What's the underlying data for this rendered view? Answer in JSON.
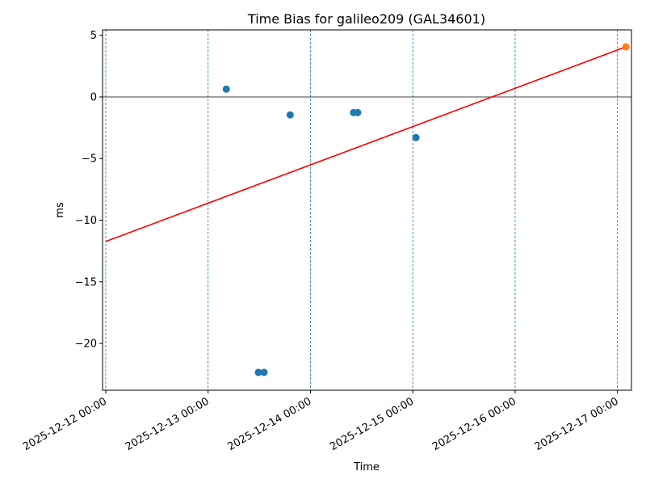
{
  "chart_data": {
    "type": "scatter",
    "title": "Time Bias for galileo209 (GAL34601)",
    "xlabel": "Time",
    "ylabel": "ms",
    "xlim": [
      "2025-12-11T23:15",
      "2025-12-17T03:17"
    ],
    "ylim": [
      -23.8,
      5.44
    ],
    "grid": "vertical dashed lines at x ticks",
    "x_ticks": [
      "2025-12-12 00:00",
      "2025-12-13 00:00",
      "2025-12-14 00:00",
      "2025-12-15 00:00",
      "2025-12-16 00:00",
      "2025-12-17 00:00"
    ],
    "x_tick_values": [
      "2025-12-12T00:00",
      "2025-12-13T00:00",
      "2025-12-14T00:00",
      "2025-12-15T00:00",
      "2025-12-16T00:00",
      "2025-12-17T00:00"
    ],
    "y_ticks": [
      5,
      0,
      -5,
      -10,
      -15,
      -20
    ],
    "y_tick_labels": [
      "5",
      "0",
      "−5",
      "−10",
      "−15",
      "−20"
    ],
    "zero_line": true,
    "series": [
      {
        "type": "scatter",
        "color": "#1f77b4",
        "points": [
          {
            "x": "2025-12-13T04:16",
            "y": 0.63
          },
          {
            "x": "2025-12-13T11:48",
            "y": -22.35
          },
          {
            "x": "2025-12-13T13:08",
            "y": -22.35
          },
          {
            "x": "2025-12-13T19:15",
            "y": -1.46
          },
          {
            "x": "2025-12-14T10:06",
            "y": -1.27
          },
          {
            "x": "2025-12-14T11:05",
            "y": -1.27
          },
          {
            "x": "2025-12-15T00:44",
            "y": -3.3
          }
        ]
      },
      {
        "type": "scatter",
        "color": "#ff7f0e",
        "points": [
          {
            "x": "2025-12-17T02:00",
            "y": 4.07
          }
        ]
      },
      {
        "type": "line",
        "color": "#ff0000",
        "points": [
          {
            "x": "2025-12-12T00:00",
            "y": -11.73
          },
          {
            "x": "2025-12-17T02:00",
            "y": 4.07
          }
        ]
      }
    ]
  }
}
